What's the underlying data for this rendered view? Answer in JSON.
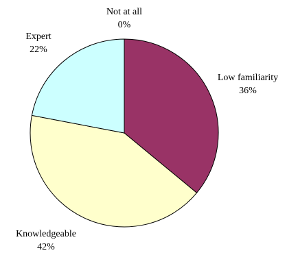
{
  "chart_data": {
    "type": "pie",
    "slices": [
      {
        "label": "Not at all",
        "value": 0,
        "percent_label": "0%",
        "color": "#ffffff"
      },
      {
        "label": "Low familiarity",
        "value": 36,
        "percent_label": "36%",
        "color": "#993366"
      },
      {
        "label": "Knowledgeable",
        "value": 42,
        "percent_label": "42%",
        "color": "#ffffcc"
      },
      {
        "label": "Expert",
        "value": 22,
        "percent_label": "22%",
        "color": "#ccffff"
      }
    ],
    "start_angle_deg": 0,
    "direction": "clockwise",
    "legend": "none",
    "edge_color": "#000000"
  }
}
